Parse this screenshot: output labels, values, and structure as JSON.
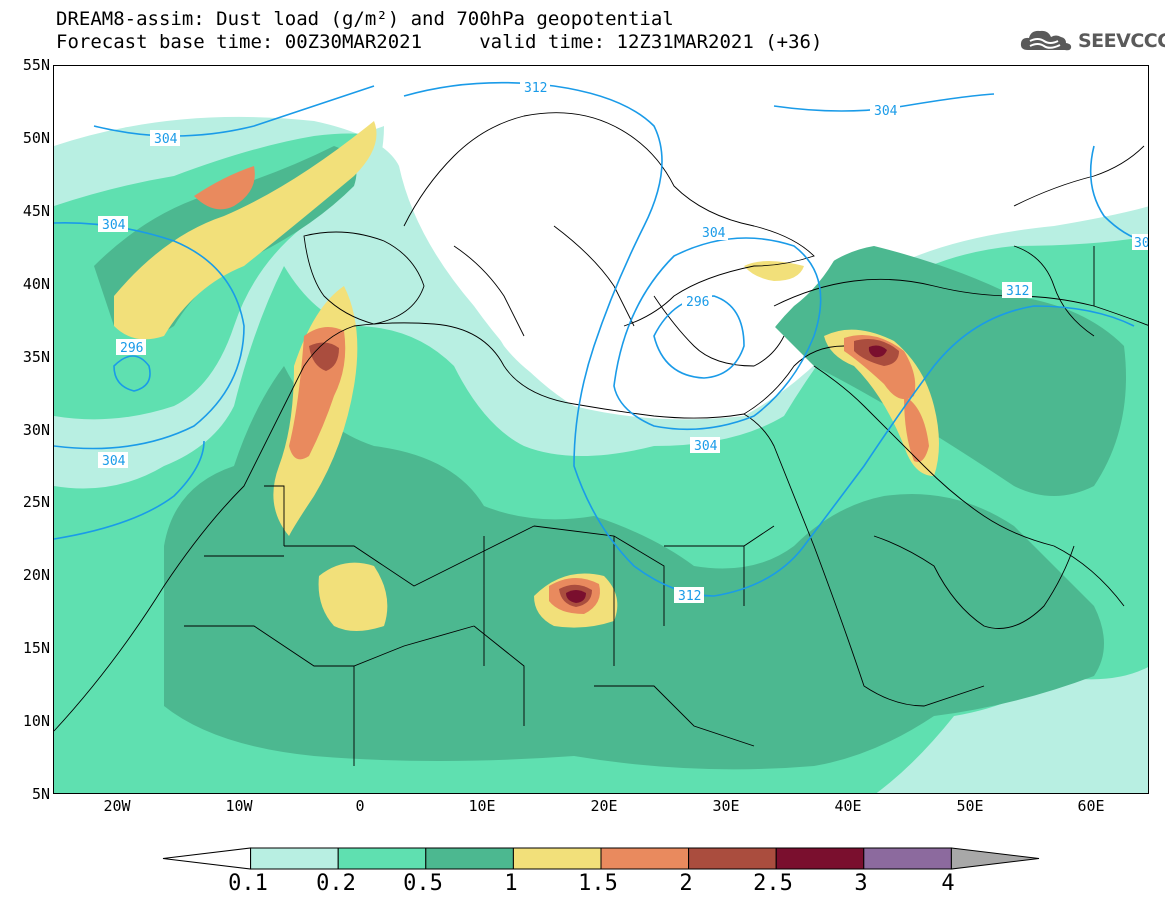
{
  "header": {
    "title_line1": "DREAM8-assim: Dust load (g/m²) and 700hPa geopotential",
    "title_line2": "Forecast base time: 00Z30MAR2021     valid time: 12Z31MAR2021 (+36)"
  },
  "logo": {
    "text": "SEEVCCC",
    "icon": "cloud-icon",
    "color": "#5a5a5a"
  },
  "map": {
    "lat_labels": [
      "55N",
      "50N",
      "45N",
      "40N",
      "35N",
      "30N",
      "25N",
      "20N",
      "15N",
      "10N",
      "5N"
    ],
    "lon_labels": [
      "20W",
      "10W",
      "0",
      "10E",
      "20E",
      "30E",
      "40E",
      "50E",
      "60E"
    ],
    "contour_labels": [
      "312",
      "304",
      "304",
      "304",
      "296",
      "304",
      "296",
      "304",
      "312",
      "304",
      "312",
      "30"
    ],
    "contour_color": "#1a9be8"
  },
  "colorbar": {
    "labels": [
      "0.1",
      "0.2",
      "0.5",
      "1",
      "1.5",
      "2",
      "2.5",
      "3",
      "4"
    ],
    "colors": [
      "#ffffff",
      "#b8efe2",
      "#5fe0b0",
      "#4cb890",
      "#f2e07a",
      "#e98a5e",
      "#aa4d3e",
      "#7a0f2e",
      "#8c6a9e",
      "#a8a8a8"
    ]
  }
}
